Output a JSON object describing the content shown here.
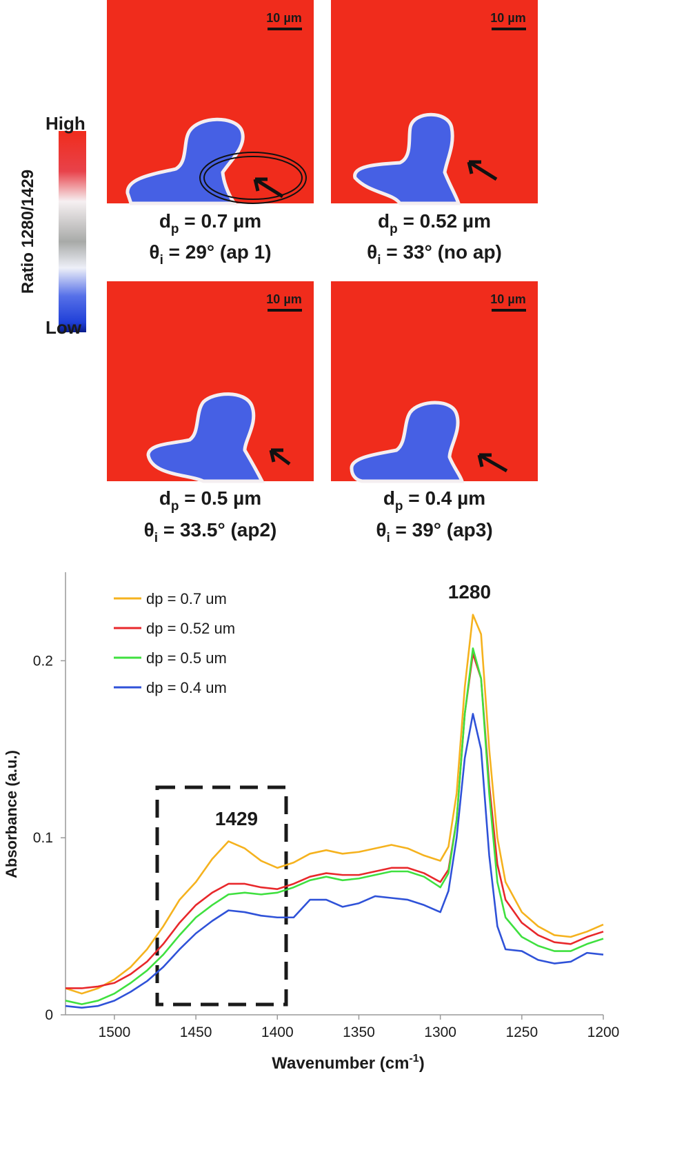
{
  "colorbar": {
    "high": "High",
    "low": "Low",
    "label": "Ratio 1280/1429"
  },
  "panels": [
    {
      "scale": "10 µm",
      "line1": [
        "d",
        "p",
        " = 0.7 µm"
      ],
      "line2": [
        "θ",
        "i",
        " = 29° (ap 1)"
      ]
    },
    {
      "scale": "10 µm",
      "line1": [
        "d",
        "p",
        " = 0.52 µm"
      ],
      "line2": [
        "θ",
        "i",
        " = 33° (no ap)"
      ]
    },
    {
      "scale": "10 µm",
      "line1": [
        "d",
        "p",
        " = 0.5 µm"
      ],
      "line2": [
        "θ",
        "i",
        " = 33.5° (ap2)"
      ]
    },
    {
      "scale": "10 µm",
      "line1": [
        "d",
        "p",
        " = 0.4 µm"
      ],
      "line2": [
        "θ",
        "i",
        " = 39° (ap3)"
      ]
    }
  ],
  "chart_data": {
    "type": "line",
    "ylabel": "Absorbance (a.u.)",
    "xlabel_parts": [
      "Wavenumber (cm",
      "-1",
      ")"
    ],
    "annotations": [
      "1280",
      "1429"
    ],
    "xlim": [
      1530,
      1200
    ],
    "ylim": [
      0,
      0.25
    ],
    "xticks": [
      1500,
      1450,
      1400,
      1350,
      1300,
      1250,
      1200
    ],
    "yticks": [
      0,
      0.1,
      0.2
    ],
    "legend": "top-left",
    "x": [
      1530,
      1520,
      1510,
      1500,
      1490,
      1480,
      1470,
      1460,
      1450,
      1440,
      1430,
      1420,
      1410,
      1400,
      1390,
      1380,
      1370,
      1360,
      1350,
      1340,
      1330,
      1320,
      1310,
      1300,
      1295,
      1290,
      1285,
      1280,
      1275,
      1270,
      1265,
      1260,
      1250,
      1240,
      1230,
      1220,
      1210,
      1200
    ],
    "series": [
      {
        "name": "dp = 0.7 um",
        "color": "#f5b21e",
        "values": [
          0.015,
          0.012,
          0.015,
          0.02,
          0.027,
          0.037,
          0.05,
          0.065,
          0.075,
          0.088,
          0.098,
          0.094,
          0.087,
          0.083,
          0.086,
          0.091,
          0.093,
          0.091,
          0.092,
          0.094,
          0.096,
          0.094,
          0.09,
          0.087,
          0.095,
          0.125,
          0.185,
          0.226,
          0.215,
          0.15,
          0.1,
          0.075,
          0.058,
          0.05,
          0.045,
          0.044,
          0.047,
          0.051
        ]
      },
      {
        "name": "dp = 0.52 um",
        "color": "#e8282b",
        "values": [
          0.015,
          0.015,
          0.016,
          0.018,
          0.023,
          0.03,
          0.04,
          0.052,
          0.062,
          0.069,
          0.074,
          0.074,
          0.072,
          0.071,
          0.074,
          0.078,
          0.08,
          0.079,
          0.079,
          0.081,
          0.083,
          0.083,
          0.08,
          0.075,
          0.082,
          0.11,
          0.17,
          0.204,
          0.19,
          0.13,
          0.085,
          0.065,
          0.052,
          0.045,
          0.041,
          0.04,
          0.044,
          0.047
        ]
      },
      {
        "name": "dp = 0.5 um",
        "color": "#3fe03f",
        "values": [
          0.008,
          0.006,
          0.008,
          0.012,
          0.018,
          0.025,
          0.034,
          0.045,
          0.055,
          0.062,
          0.068,
          0.069,
          0.068,
          0.069,
          0.072,
          0.076,
          0.078,
          0.076,
          0.077,
          0.079,
          0.081,
          0.081,
          0.078,
          0.072,
          0.08,
          0.11,
          0.17,
          0.207,
          0.19,
          0.125,
          0.075,
          0.055,
          0.044,
          0.039,
          0.036,
          0.036,
          0.04,
          0.043
        ]
      },
      {
        "name": "dp = 0.4 um",
        "color": "#2f52d8",
        "values": [
          0.005,
          0.004,
          0.005,
          0.008,
          0.013,
          0.019,
          0.027,
          0.037,
          0.046,
          0.053,
          0.059,
          0.058,
          0.056,
          0.055,
          0.055,
          0.065,
          0.065,
          0.061,
          0.063,
          0.067,
          0.066,
          0.065,
          0.062,
          0.058,
          0.07,
          0.1,
          0.145,
          0.17,
          0.15,
          0.09,
          0.05,
          0.037,
          0.036,
          0.031,
          0.029,
          0.03,
          0.035,
          0.034
        ]
      }
    ]
  }
}
